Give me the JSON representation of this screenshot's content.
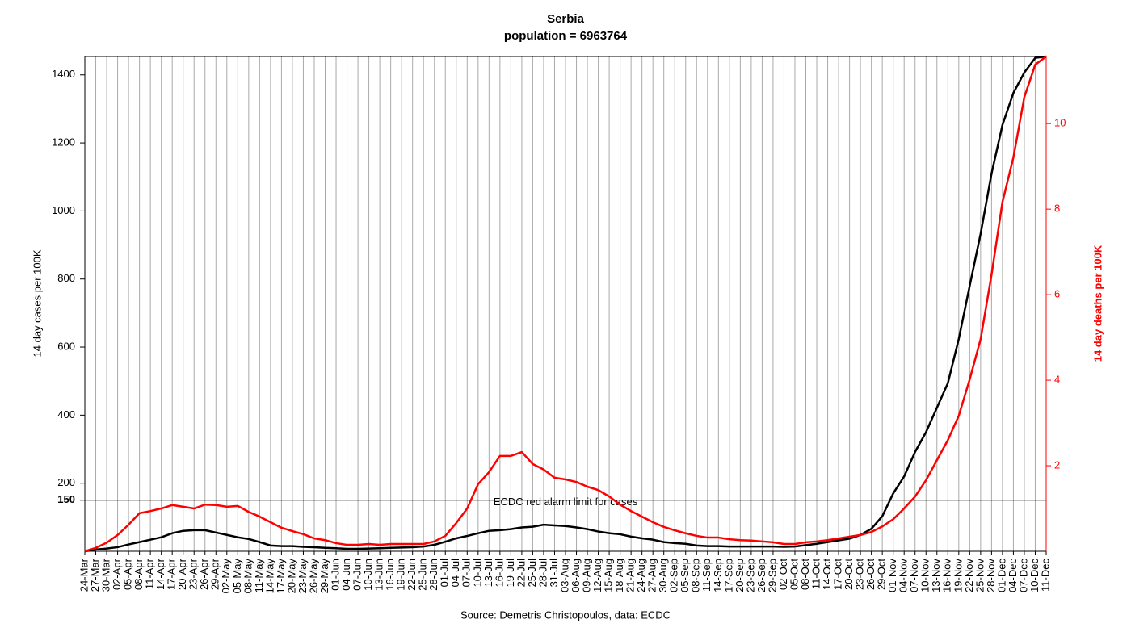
{
  "chart_data": {
    "type": "line",
    "title": "Serbia",
    "subtitle": "population = 6963764",
    "ylabel": "14 day cases per 100K",
    "y2label": "14 day deaths per 100K",
    "source": "Source: Demetris Christopoulos, data: ECDC",
    "categories": [
      "24-Mar",
      "27-Mar",
      "30-Mar",
      "02-Apr",
      "05-Apr",
      "08-Apr",
      "11-Apr",
      "14-Apr",
      "17-Apr",
      "20-Apr",
      "23-Apr",
      "26-Apr",
      "29-Apr",
      "02-May",
      "05-May",
      "08-May",
      "11-May",
      "14-May",
      "17-May",
      "20-May",
      "23-May",
      "26-May",
      "29-May",
      "01-Jun",
      "04-Jun",
      "07-Jun",
      "10-Jun",
      "13-Jun",
      "16-Jun",
      "19-Jun",
      "22-Jun",
      "25-Jun",
      "28-Jun",
      "01-Jul",
      "04-Jul",
      "07-Jul",
      "10-Jul",
      "13-Jul",
      "16-Jul",
      "19-Jul",
      "22-Jul",
      "25-Jul",
      "28-Jul",
      "31-Jul",
      "03-Aug",
      "06-Aug",
      "09-Aug",
      "12-Aug",
      "15-Aug",
      "18-Aug",
      "21-Aug",
      "24-Aug",
      "27-Aug",
      "30-Aug",
      "02-Sep",
      "05-Sep",
      "08-Sep",
      "11-Sep",
      "14-Sep",
      "17-Sep",
      "20-Sep",
      "23-Sep",
      "26-Sep",
      "29-Sep",
      "02-Oct",
      "05-Oct",
      "08-Oct",
      "11-Oct",
      "14-Oct",
      "17-Oct",
      "20-Oct",
      "23-Oct",
      "26-Oct",
      "29-Oct",
      "01-Nov",
      "04-Nov",
      "07-Nov",
      "10-Nov",
      "13-Nov",
      "16-Nov",
      "19-Nov",
      "22-Nov",
      "25-Nov",
      "28-Nov",
      "01-Dec",
      "04-Dec",
      "07-Dec",
      "10-Dec",
      "11-Dec"
    ],
    "series": [
      {
        "color": "#000000",
        "values": [
          0,
          5,
          8,
          12,
          20,
          27,
          34,
          41,
          53,
          60,
          62,
          62,
          55,
          48,
          41,
          36,
          27,
          17,
          15,
          15,
          13,
          12,
          10,
          9,
          7,
          7,
          8,
          9,
          10,
          11,
          12,
          14,
          19,
          28,
          38,
          45,
          53,
          60,
          62,
          65,
          70,
          72,
          78,
          76,
          74,
          70,
          65,
          58,
          53,
          50,
          43,
          38,
          34,
          27,
          24,
          22,
          17,
          15,
          15,
          14,
          14,
          14,
          14,
          14,
          13,
          14,
          18,
          22,
          27,
          32,
          37,
          48,
          66,
          103,
          170,
          220,
          292,
          350,
          422,
          494,
          624,
          780,
          933,
          1110,
          1253,
          1347,
          1407,
          1450,
          1454
        ]
      },
      {
        "color": "#ff0000",
        "axis": "y2",
        "values": [
          0,
          0.08,
          0.2,
          0.38,
          0.62,
          0.89,
          0.94,
          1.0,
          1.08,
          1.04,
          1.0,
          1.09,
          1.08,
          1.04,
          1.06,
          0.92,
          0.81,
          0.68,
          0.55,
          0.47,
          0.4,
          0.3,
          0.26,
          0.19,
          0.15,
          0.15,
          0.17,
          0.15,
          0.17,
          0.17,
          0.17,
          0.17,
          0.23,
          0.36,
          0.66,
          1.0,
          1.57,
          1.85,
          2.23,
          2.23,
          2.32,
          2.04,
          1.91,
          1.72,
          1.68,
          1.62,
          1.51,
          1.43,
          1.28,
          1.09,
          0.94,
          0.81,
          0.68,
          0.57,
          0.49,
          0.42,
          0.36,
          0.32,
          0.32,
          0.28,
          0.26,
          0.25,
          0.23,
          0.21,
          0.17,
          0.17,
          0.21,
          0.23,
          0.26,
          0.3,
          0.34,
          0.38,
          0.45,
          0.58,
          0.75,
          1.0,
          1.28,
          1.66,
          2.13,
          2.6,
          3.17,
          4.02,
          4.96,
          6.47,
          8.17,
          9.21,
          10.62,
          11.38,
          11.57
        ]
      }
    ],
    "ylim": [
      0,
      1454
    ],
    "yticks": [
      150,
      200,
      400,
      600,
      800,
      1000,
      1200,
      1400
    ],
    "y2lim": [
      0,
      11.57
    ],
    "y2ticks": [
      2,
      4,
      6,
      8,
      10
    ],
    "y2color": "#ff0000",
    "hline": {
      "value": 150,
      "label": "ECDC red alarm limit for cases"
    },
    "grid": true
  }
}
